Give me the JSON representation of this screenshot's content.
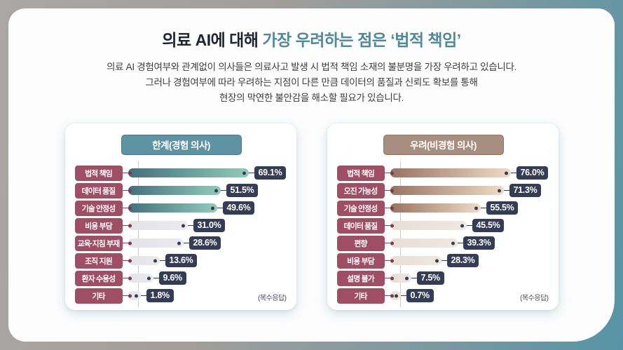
{
  "title": {
    "dark": "의료 AI에 대해 ",
    "teal": "가장 우려하는 점은 ‘법적 책임’"
  },
  "subtitle_lines": [
    "의료 AI 경험여부와 관계없이 의사들은 의료사고 발생 시 법적 책임 소재의 불분명을 가장 우려하고 있습니다.",
    "그러나 경험여부에 따라 우려하는 지점이 다른 만큼 데이터의 품질과 신뢰도 확보를 통해",
    "현장의 막연한 불안감을 해소할 필요가 있습니다."
  ],
  "footnote": "(복수응답)",
  "chart_data": [
    {
      "type": "bar",
      "orientation": "horizontal",
      "title": "한계(경험 의사)",
      "unit": "%",
      "note": "(복수응답)",
      "categories": [
        "법적 책임",
        "데이터 품질",
        "기술 안정성",
        "비용 부담",
        "교육·지침 부재",
        "조직 지원",
        "환자 수용성",
        "기타"
      ],
      "values": [
        69.1,
        51.5,
        49.6,
        31.0,
        28.6,
        13.6,
        9.6,
        1.8
      ],
      "highlighted_count": 3,
      "xlim": [
        0,
        80
      ]
    },
    {
      "type": "bar",
      "orientation": "horizontal",
      "title": "우려(비경험 의사)",
      "unit": "%",
      "note": "(복수응답)",
      "categories": [
        "법적 책임",
        "오진 가능성",
        "기술 안정성",
        "데이터 품질",
        "편향",
        "비용 부담",
        "설명 불가",
        "기타"
      ],
      "values": [
        76.0,
        71.3,
        55.5,
        45.5,
        39.3,
        28.3,
        7.5,
        0.7
      ],
      "highlighted_count": 3,
      "xlim": [
        0,
        80
      ]
    }
  ],
  "colors": {
    "title-dark": "#1f2433",
    "title-teal": "#4f8a9a",
    "header-teal": "#5e93a3",
    "header-brown": "#a78e7e",
    "cat-badge": "#a04d66",
    "val-badge": "#353c55",
    "teal-bar-from": "#41707e",
    "teal-bar-to": "#92ccb7",
    "brown-bar-from": "#997260",
    "brown-bar-to": "#eedcc6"
  }
}
